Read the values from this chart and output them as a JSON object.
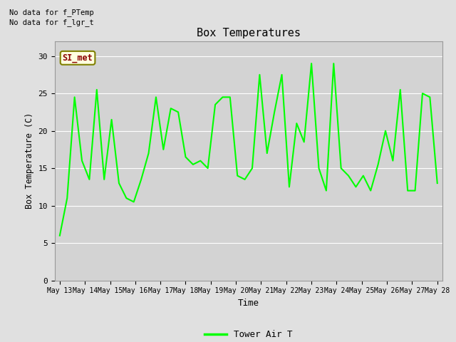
{
  "title": "Box Temperatures",
  "xlabel": "Time",
  "ylabel": "Box Temperature (C)",
  "annotations": [
    "No data for f_PTemp",
    "No data for f_lgr_t"
  ],
  "legend_label": "Tower Air T",
  "legend_color": "#00FF00",
  "line_color": "#00FF00",
  "background_color": "#E0E0E0",
  "plot_bg_color": "#D3D3D3",
  "ylim": [
    0,
    32
  ],
  "yticks": [
    0,
    5,
    10,
    15,
    20,
    25,
    30
  ],
  "x_labels": [
    "May 13",
    "May 14",
    "May 15",
    "May 16",
    "May 17",
    "May 18",
    "May 19",
    "May 20",
    "May 21",
    "May 22",
    "May 23",
    "May 24",
    "May 25",
    "May 26",
    "May 27",
    "May 28"
  ],
  "si_met_label": "SI_met",
  "tower_air_t": [
    6.0,
    11.0,
    24.5,
    16.0,
    13.5,
    25.5,
    13.5,
    21.5,
    13.0,
    11.0,
    10.5,
    13.5,
    17.0,
    24.5,
    17.5,
    23.0,
    22.5,
    16.5,
    15.5,
    16.0,
    15.0,
    23.5,
    24.5,
    24.5,
    14.0,
    13.5,
    15.0,
    27.5,
    17.0,
    22.5,
    27.5,
    12.5,
    21.0,
    18.5,
    29.0,
    15.0,
    12.0,
    29.0,
    15.0,
    14.0,
    12.5,
    14.0,
    12.0,
    15.5,
    20.0,
    16.0,
    25.5,
    12.0,
    12.0,
    25.0,
    24.5,
    13.0
  ]
}
